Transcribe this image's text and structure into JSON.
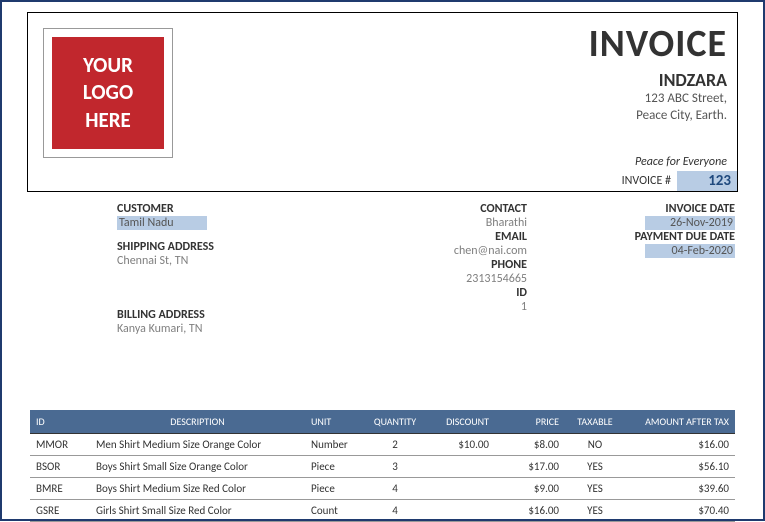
{
  "header": {
    "logo_line1": "YOUR",
    "logo_line2": "LOGO",
    "logo_line3": "HERE",
    "title": "INVOICE",
    "company": "INDZARA",
    "addr1": "123 ABC Street,",
    "addr2": "Peace City, Earth.",
    "tagline": "Peace for Everyone",
    "inv_num_label": "INVOICE #",
    "inv_num": "123"
  },
  "customer": {
    "label": "CUSTOMER",
    "name": "Tamil Nadu",
    "ship_label": "SHIPPING ADDRESS",
    "ship_val": "Chennai St, TN",
    "bill_label": "BILLING ADDRESS",
    "bill_val": "Kanya Kumari, TN"
  },
  "contact": {
    "label": "CONTACT",
    "name": "Bharathi",
    "email_label": "EMAIL",
    "email": "chen@nai.com",
    "phone_label": "PHONE",
    "phone": "2313154665",
    "id_label": "ID",
    "id": "1"
  },
  "dates": {
    "inv_label": "INVOICE DATE",
    "inv_val": "26-Nov-2019",
    "due_label": "PAYMENT DUE DATE",
    "due_val": "04-Feb-2020"
  },
  "table": {
    "headers": {
      "id": "ID",
      "desc": "DESCRIPTION",
      "unit": "UNIT",
      "qty": "QUANTITY",
      "disc": "DISCOUNT",
      "price": "PRICE",
      "tax": "TAXABLE",
      "amt": "AMOUNT AFTER TAX"
    },
    "rows": [
      {
        "id": "MMOR",
        "desc": "Men Shirt Medium Size Orange Color",
        "unit": "Number",
        "qty": "2",
        "disc": "$10.00",
        "price": "$8.00",
        "tax": "NO",
        "amt": "$16.00"
      },
      {
        "id": "BSOR",
        "desc": "Boys Shirt Small Size Orange Color",
        "unit": "Piece",
        "qty": "3",
        "disc": "",
        "price": "$17.00",
        "tax": "YES",
        "amt": "$56.10"
      },
      {
        "id": "BMRE",
        "desc": "Boys Shirt Medium Size Red Color",
        "unit": "Piece",
        "qty": "4",
        "disc": "",
        "price": "$9.00",
        "tax": "YES",
        "amt": "$39.60"
      },
      {
        "id": "GSRE",
        "desc": "Girls Shirt Small Size Red Color",
        "unit": "Count",
        "qty": "4",
        "disc": "",
        "price": "$16.00",
        "tax": "YES",
        "amt": "$70.40"
      }
    ]
  },
  "colors": {
    "border": "#1f3a6e",
    "logo_bg": "#c1272d",
    "highlight": "#b8cce4",
    "table_header": "#4a6a92"
  }
}
